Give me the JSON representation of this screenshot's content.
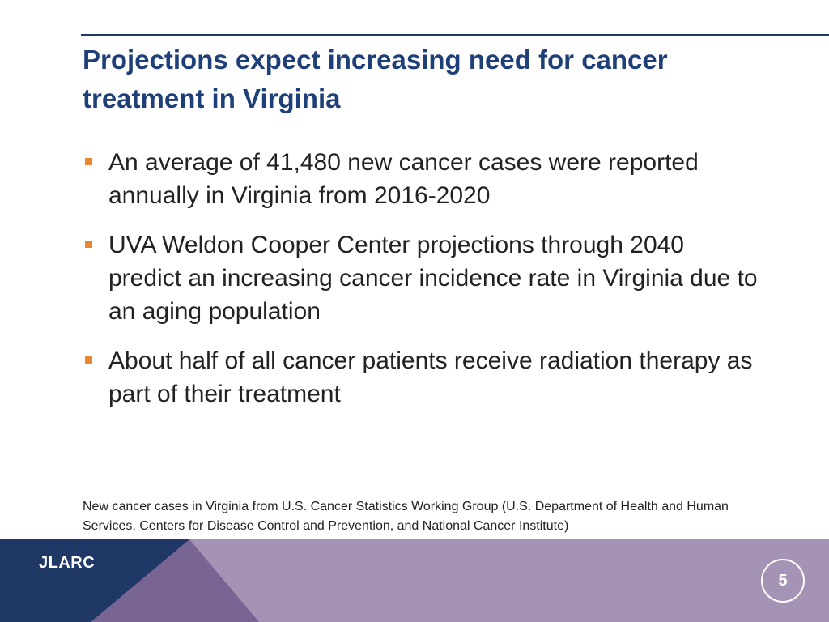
{
  "slide": {
    "title": "Projections expect increasing need for cancer treatment in Virginia",
    "bullets": [
      "An average of 41,480 new cancer cases were reported annually in Virginia from 2016-2020",
      "UVA Weldon Cooper Center projections through 2040 predict an increasing cancer incidence rate in Virginia due to an aging population",
      "About half of all cancer patients receive radiation therapy as part of their treatment"
    ],
    "footnote": "New cancer cases in Virginia from U.S. Cancer Statistics Working Group (U.S. Department of Health and Human Services, Centers for Disease Control and Prevention, and National Cancer Institute)"
  },
  "footer": {
    "logo": "JLARC",
    "page_number": "5"
  },
  "colors": {
    "title": "#1f3f78",
    "rule": "#1f3864",
    "bullet_marker": "#e8872e",
    "footer_navy": "#1f3866",
    "footer_mid": "#796594",
    "footer_light": "#a593b5"
  }
}
